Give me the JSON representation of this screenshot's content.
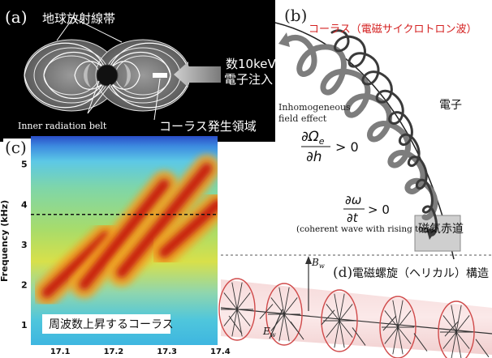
{
  "panel_a": {
    "label": "(a)",
    "belt_title": "地球放射線帯",
    "injection_line1": "数10keV",
    "injection_line2": "電子注入",
    "inner_belt": "Inner radiation belt",
    "chorus_region": "コーラス発生領域"
  },
  "panel_b": {
    "label": "(b)",
    "chorus_title": "コーラス（電磁サイクロトロン波）",
    "electron": "電子",
    "inhomogeneous_line1": "Inhomogeneous",
    "inhomogeneous_line2": "field effect",
    "cond1_num": "∂Ω",
    "cond1_sub": "e",
    "cond1_den": "∂h",
    "cond1_rhs": "> 0",
    "cond2_num": "∂ω",
    "cond2_den": "∂t",
    "cond2_rhs": "> 0",
    "coherent": "(coherent wave with rising tone)",
    "equator": "磁気赤道"
  },
  "panel_c": {
    "label": "(c)",
    "ylabel": "Frequency (kHz)",
    "caption": "周波数上昇するコーラス",
    "chart_data": {
      "type": "heatmap",
      "xlabel": "",
      "ylabel": "Frequency (kHz)",
      "xlim": [
        17.05,
        17.4
      ],
      "ylim": [
        0.5,
        5.7
      ],
      "x_ticks": [
        "17.1",
        "17.2",
        "17.3",
        "17.4"
      ],
      "x_tick_values": [
        17.1,
        17.2,
        17.3,
        17.4
      ],
      "y_ticks": [
        "1",
        "2",
        "3",
        "4",
        "5"
      ],
      "y_tick_values": [
        1,
        2,
        3,
        4,
        5
      ],
      "reference_line_khz": 3.75,
      "rising_tone_elements": [
        {
          "t_start": 17.08,
          "f_start": 1.8,
          "t_end": 17.19,
          "f_end": 3.2
        },
        {
          "t_start": 17.15,
          "f_start": 2.0,
          "t_end": 17.3,
          "f_end": 4.5
        },
        {
          "t_start": 17.22,
          "f_start": 2.3,
          "t_end": 17.38,
          "f_end": 4.9
        },
        {
          "t_start": 17.3,
          "f_start": 2.8,
          "t_end": 17.4,
          "f_end": 4.0
        }
      ]
    }
  },
  "panel_d": {
    "label": "(d)",
    "title": "電磁螺旋（ヘリカル）構造",
    "bw_main": "B",
    "bw_sub": "w",
    "ew_main": "E",
    "ew_sub": "w"
  }
}
